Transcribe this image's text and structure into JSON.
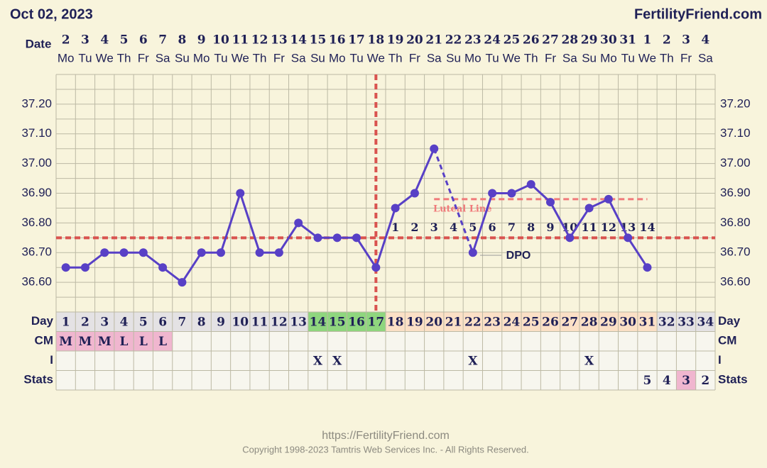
{
  "chart_data": {
    "type": "line",
    "title": "Oct 02, 2023",
    "brand": "FertilityFriend.com",
    "row_labels": {
      "date": "Date",
      "day": "Day",
      "cm": "CM",
      "i": "I",
      "stats": "Stats"
    },
    "dates": [
      2,
      3,
      4,
      5,
      6,
      7,
      8,
      9,
      10,
      11,
      12,
      13,
      14,
      15,
      16,
      17,
      18,
      19,
      20,
      21,
      22,
      23,
      24,
      25,
      26,
      27,
      28,
      29,
      30,
      31,
      1,
      2,
      3,
      4
    ],
    "weekdays": [
      "Mo",
      "Tu",
      "We",
      "Th",
      "Fr",
      "Sa",
      "Su",
      "Mo",
      "Tu",
      "We",
      "Th",
      "Fr",
      "Sa",
      "Su",
      "Mo",
      "Tu",
      "We",
      "Th",
      "Fr",
      "Sa",
      "Su",
      "Mo",
      "Tu",
      "We",
      "Th",
      "Fr",
      "Sa",
      "Su",
      "Mo",
      "Tu",
      "We",
      "Th",
      "Fr",
      "Sa"
    ],
    "days": [
      1,
      2,
      3,
      4,
      5,
      6,
      7,
      8,
      9,
      10,
      11,
      12,
      13,
      14,
      15,
      16,
      17,
      18,
      19,
      20,
      21,
      22,
      23,
      24,
      25,
      26,
      27,
      28,
      29,
      30,
      31,
      32,
      33,
      34
    ],
    "day_colors": [
      "#e4e2e4",
      "#e4e2e4",
      "#e4e2e4",
      "#e4e2e4",
      "#e4e2e4",
      "#e4e2e4",
      "#e4e2e4",
      "#e4e2e4",
      "#e4e2e4",
      "#e4e2e4",
      "#e4e2e4",
      "#e4e2e4",
      "#e4e2e4",
      "#8fd67e",
      "#8fd67e",
      "#8fd67e",
      "#8fd67e",
      "#fbe0c6",
      "#fbe0c6",
      "#fbe0c6",
      "#fbe0c6",
      "#fbe0c6",
      "#fbe0c6",
      "#fbe0c6",
      "#fbe0c6",
      "#fbe0c6",
      "#fbe0c6",
      "#fbe0c6",
      "#fbe0c6",
      "#fbe0c6",
      "#fbe0c6",
      "#e4e2e4",
      "#e4e2e4",
      "#e4e2e4"
    ],
    "cm": [
      "M",
      "M",
      "M",
      "L",
      "L",
      "L",
      null,
      null,
      null,
      null,
      null,
      null,
      null,
      null,
      null,
      null,
      null,
      null,
      null,
      null,
      null,
      null,
      null,
      null,
      null,
      null,
      null,
      null,
      null,
      null,
      null,
      null,
      null,
      null
    ],
    "cm_color": "#f0b6cf",
    "intercourse": [
      null,
      null,
      null,
      null,
      null,
      null,
      null,
      null,
      null,
      null,
      null,
      null,
      null,
      "X",
      "X",
      null,
      null,
      null,
      null,
      null,
      null,
      "X",
      null,
      null,
      null,
      null,
      null,
      "X",
      null,
      null,
      null,
      null,
      null,
      null
    ],
    "stats": [
      null,
      null,
      null,
      null,
      null,
      null,
      null,
      null,
      null,
      null,
      null,
      null,
      null,
      null,
      null,
      null,
      null,
      null,
      null,
      null,
      null,
      null,
      null,
      null,
      null,
      null,
      null,
      null,
      null,
      null,
      5,
      4,
      3,
      2
    ],
    "stats_colors": [
      null,
      null,
      null,
      null,
      null,
      null,
      null,
      null,
      null,
      null,
      null,
      null,
      null,
      null,
      null,
      null,
      null,
      null,
      null,
      null,
      null,
      null,
      null,
      null,
      null,
      null,
      null,
      null,
      null,
      null,
      null,
      null,
      "#f0b6cf",
      null
    ],
    "series": [
      {
        "color": "#5840c6",
        "values": [
          36.65,
          36.65,
          36.7,
          36.7,
          36.7,
          36.65,
          36.6,
          36.7,
          36.7,
          36.9,
          36.7,
          36.7,
          36.8,
          36.75,
          36.75,
          36.75,
          36.65,
          36.85,
          36.9,
          37.05,
          null,
          36.7,
          36.9,
          36.9,
          36.93,
          36.87,
          36.75,
          36.85,
          36.88,
          36.75,
          36.65,
          null,
          null,
          null
        ]
      }
    ],
    "ylim": [
      36.5,
      37.3
    ],
    "yticks": [
      {
        "value": 36.6,
        "label": "36.60"
      },
      {
        "value": 36.7,
        "label": "36.70"
      },
      {
        "value": 36.8,
        "label": "36.80"
      },
      {
        "value": 36.9,
        "label": "36.90"
      },
      {
        "value": 37.0,
        "label": "37.00"
      },
      {
        "value": 37.1,
        "label": "37.10"
      },
      {
        "value": 37.2,
        "label": "37.20"
      }
    ],
    "minor_yticks": [
      36.55,
      36.65,
      36.75,
      36.85,
      36.95,
      37.05,
      37.15,
      37.25
    ],
    "grid": true,
    "coverline": 36.75,
    "coverline_color": "#d9534f",
    "ovulation_day": 17,
    "luteal_line": {
      "label": "Luteal Line",
      "value": 36.88,
      "from_day": 20,
      "to_day": 31,
      "color": "#f07a7a"
    },
    "dpo_label": "DPO",
    "dpo": [
      null,
      null,
      null,
      null,
      null,
      null,
      null,
      null,
      null,
      null,
      null,
      null,
      null,
      null,
      null,
      null,
      null,
      1,
      2,
      3,
      4,
      5,
      6,
      7,
      8,
      9,
      10,
      11,
      12,
      13,
      14,
      null,
      null,
      null
    ],
    "footer": {
      "url": "https://FertilityFriend.com",
      "copyright": "Copyright 1998-2023 Tamtris Web Services Inc. - All Rights Reserved."
    }
  }
}
